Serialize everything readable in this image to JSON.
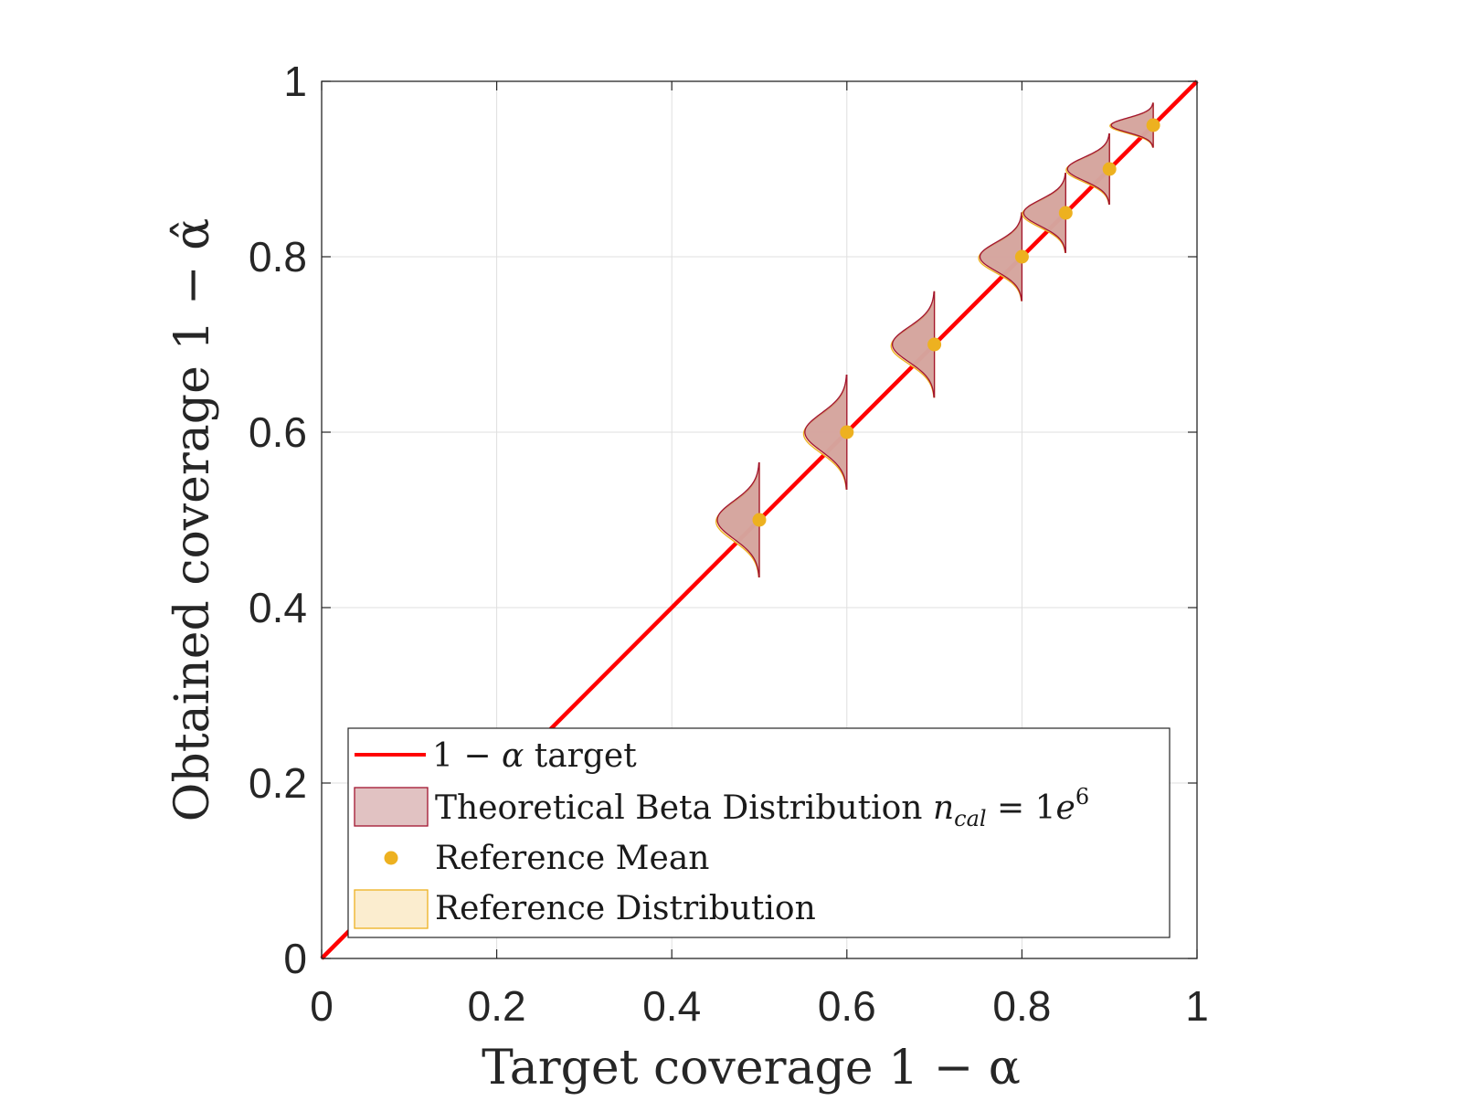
{
  "chart_data": {
    "type": "line",
    "title": "",
    "xlabel": "Target coverage 1 − α",
    "ylabel": "Obtained coverage 1 − α̂",
    "xlim": [
      0,
      1
    ],
    "ylim": [
      0,
      1
    ],
    "grid": true,
    "x_ticks": [
      0,
      0.2,
      0.4,
      0.6,
      0.8,
      1
    ],
    "x_tick_labels": [
      "0",
      "0.2",
      "0.4",
      "0.6",
      "0.8",
      "1"
    ],
    "y_ticks": [
      0,
      0.2,
      0.4,
      0.6,
      0.8,
      1
    ],
    "y_tick_labels": [
      "0",
      "0.2",
      "0.4",
      "0.6",
      "0.8",
      "1"
    ],
    "target_line": {
      "name": "1 − α target",
      "color": "#ff0000",
      "x": [
        0,
        1
      ],
      "y": [
        0,
        1
      ]
    },
    "reference_mean": {
      "name": "Reference Mean",
      "color": "#edb120",
      "x": [
        0.5,
        0.6,
        0.7,
        0.8,
        0.85,
        0.9,
        0.95
      ],
      "y": [
        0.5,
        0.6,
        0.7,
        0.8,
        0.85,
        0.9,
        0.95
      ]
    },
    "distributions": [
      {
        "center": 0.5,
        "spread": 0.065,
        "width": 0.048
      },
      {
        "center": 0.6,
        "spread": 0.065,
        "width": 0.048
      },
      {
        "center": 0.7,
        "spread": 0.06,
        "width": 0.048
      },
      {
        "center": 0.8,
        "spread": 0.05,
        "width": 0.048
      },
      {
        "center": 0.85,
        "spread": 0.045,
        "width": 0.048
      },
      {
        "center": 0.9,
        "spread": 0.04,
        "width": 0.048
      },
      {
        "center": 0.95,
        "spread": 0.025,
        "width": 0.048
      }
    ],
    "theory_color": "#a2142f",
    "theory_fill": "#c98f8f",
    "reference_color": "#edb120",
    "reference_fill": "#fbedcf",
    "legend_position": "bottom",
    "legend": {
      "target": {
        "prefix": "1 − ",
        "alpha": "α",
        "suffix": " target"
      },
      "beta": {
        "text": "Theoretical Beta Distribution ",
        "n": "n",
        "n_sub": "cal",
        "eq": " = 1",
        "e": "e",
        "e_sup": "6"
      },
      "mean": "Reference Mean",
      "reference": "Reference Distribution"
    }
  }
}
